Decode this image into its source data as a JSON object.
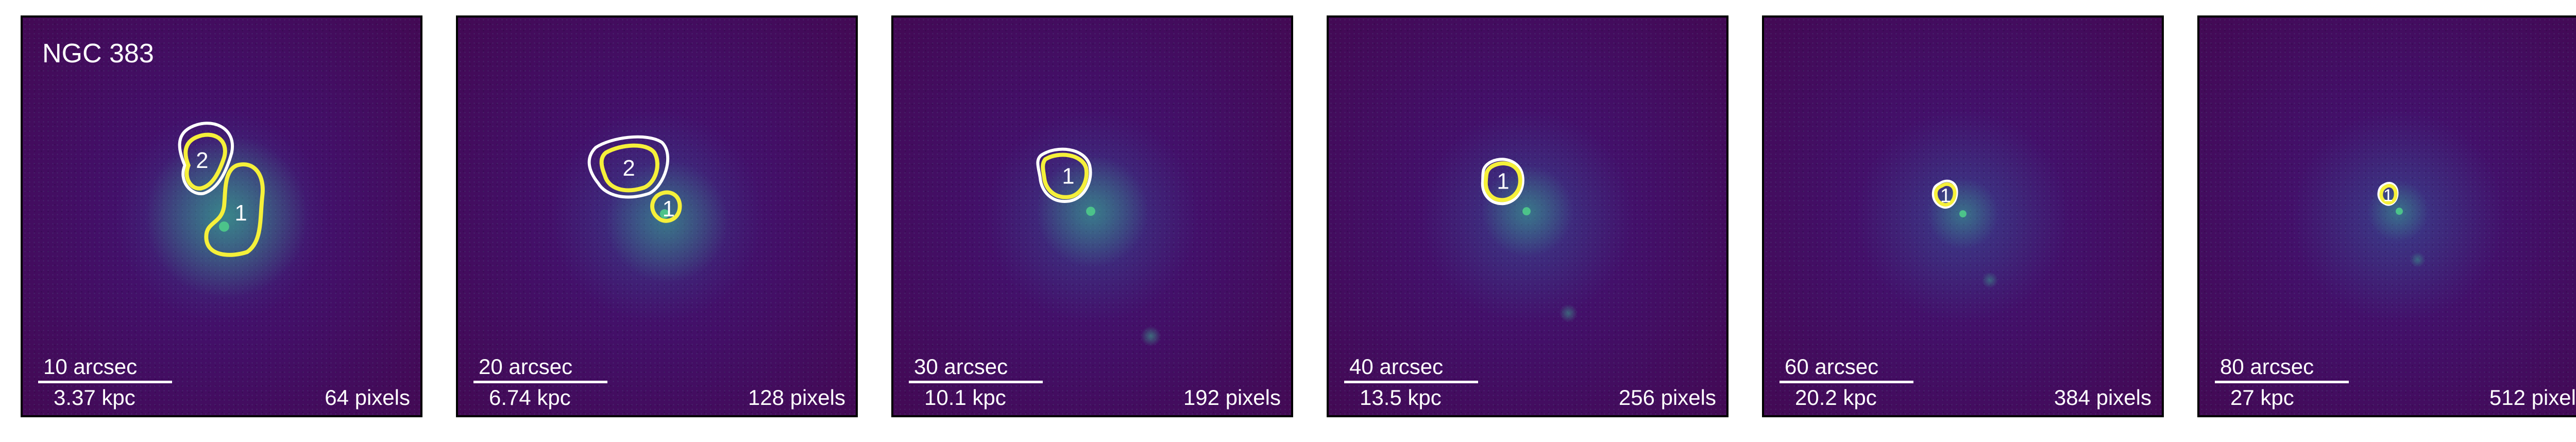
{
  "galaxy_name": "NGC 383",
  "colors": {
    "background": "#430954",
    "contour_outer": "#ffffff",
    "contour_inner": "#f5f03a",
    "core": "#4cc38a"
  },
  "panels": [
    {
      "arcsec": "10 arcsec",
      "kpc": "3.37 kpc",
      "pixels": "64 pixels",
      "regions": [
        "2",
        "1"
      ]
    },
    {
      "arcsec": "20 arcsec",
      "kpc": "6.74 kpc",
      "pixels": "128 pixels",
      "regions": [
        "2",
        "1"
      ]
    },
    {
      "arcsec": "30 arcsec",
      "kpc": "10.1 kpc",
      "pixels": "192 pixels",
      "regions": [
        "1"
      ]
    },
    {
      "arcsec": "40 arcsec",
      "kpc": "13.5 kpc",
      "pixels": "256 pixels",
      "regions": [
        "1"
      ]
    },
    {
      "arcsec": "60 arcsec",
      "kpc": "20.2 kpc",
      "pixels": "384 pixels",
      "regions": [
        "1"
      ]
    },
    {
      "arcsec": "80 arcsec",
      "kpc": "27 kpc",
      "pixels": "512 pixels",
      "regions": [
        "1"
      ]
    }
  ]
}
